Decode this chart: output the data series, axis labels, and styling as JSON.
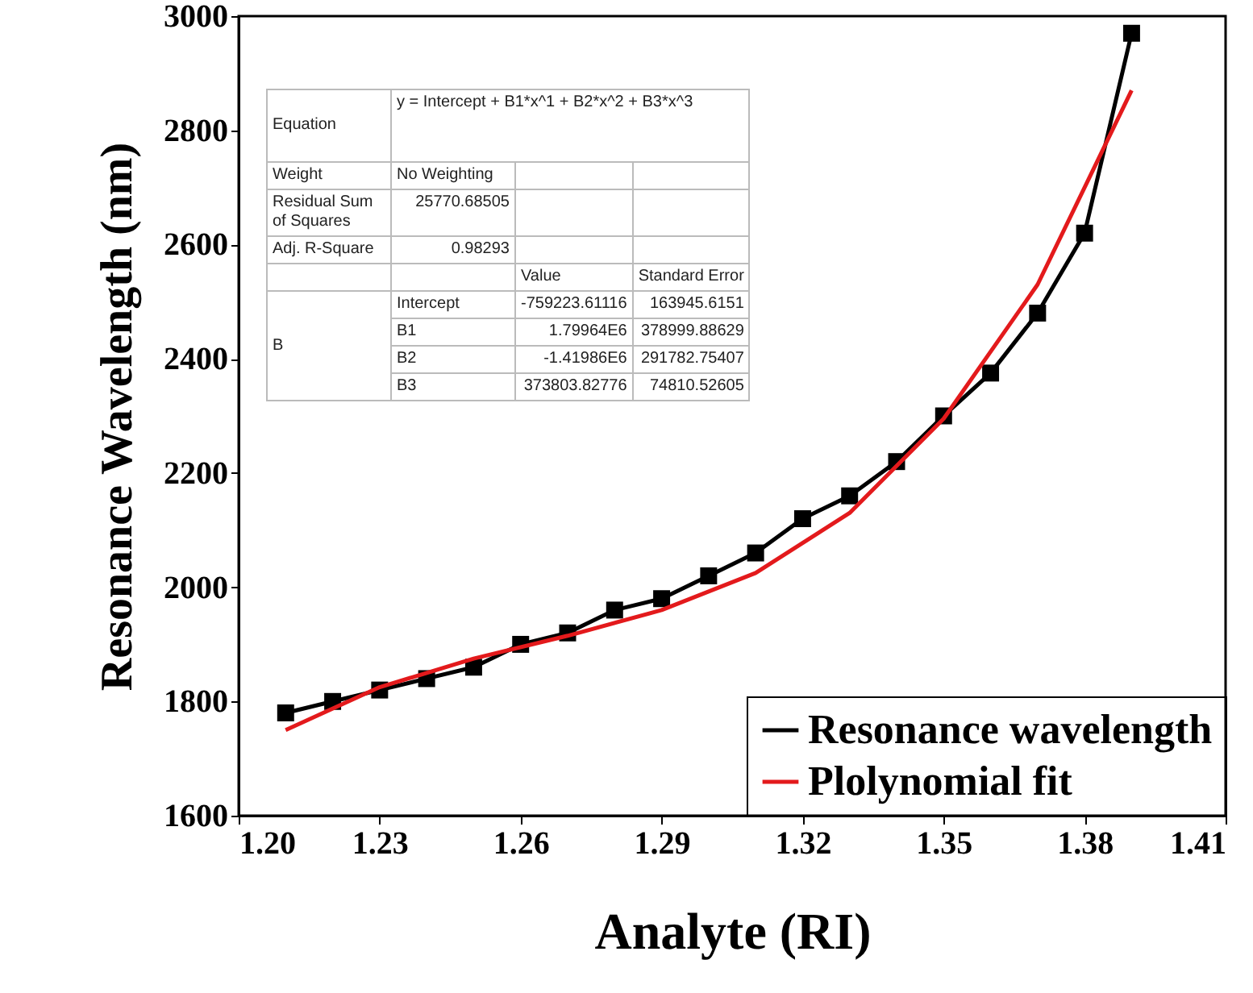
{
  "chart_data": {
    "type": "line",
    "xlabel": "Analyte (RI)",
    "ylabel": "Resonance Wavelength (nm)",
    "series": [
      {
        "name": "Resonance wavelength",
        "color": "#000000",
        "marker": "square",
        "x": [
          1.21,
          1.22,
          1.23,
          1.24,
          1.25,
          1.26,
          1.27,
          1.28,
          1.29,
          1.3,
          1.31,
          1.32,
          1.33,
          1.34,
          1.35,
          1.36,
          1.37,
          1.38,
          1.39
        ],
        "values": [
          1780,
          1800,
          1820,
          1840,
          1860,
          1900,
          1920,
          1960,
          1980,
          2020,
          2060,
          2120,
          2160,
          2220,
          2300,
          2375,
          2480,
          2620,
          2970
        ]
      },
      {
        "name": "Plolynomial fit",
        "color": "#e31a1c",
        "marker": "none",
        "x": [
          1.21,
          1.23,
          1.25,
          1.27,
          1.29,
          1.31,
          1.33,
          1.35,
          1.37,
          1.39
        ],
        "values": [
          1750,
          1825,
          1875,
          1915,
          1960,
          2025,
          2130,
          2295,
          2530,
          2870
        ]
      }
    ],
    "xlim": [
      1.2,
      1.41
    ],
    "xticks": [
      {
        "value": 1.2,
        "label": "1.20"
      },
      1.23,
      1.26,
      1.29,
      1.32,
      1.35,
      1.38,
      1.41
    ],
    "ylim": [
      1600,
      3000
    ],
    "yticks": [
      1600,
      1800,
      2000,
      2200,
      2400,
      2600,
      2800,
      3000
    ],
    "grid": false,
    "legend": "bottom right",
    "line_style": "solid",
    "annotations": [
      "Equation",
      "y = Intercept + B1*x^1 + B2*x^2 + B3*x^3",
      "Weight",
      "No Weighting",
      "Residual Sum of Squares",
      "25770.68505",
      "Adj. R-Square",
      "0.98293",
      "Value",
      "Standard Error",
      "B",
      "Intercept",
      "-759223.61116",
      "163945.6151",
      "B1",
      "1.79964E6",
      "378999.88629",
      "B2",
      "-1.41986E6",
      "291782.75407",
      "B3",
      "373803.82776",
      "74810.52605"
    ]
  }
}
